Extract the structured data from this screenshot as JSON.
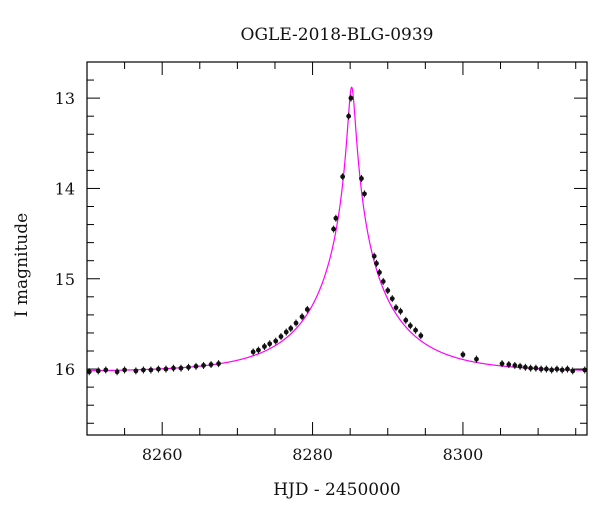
{
  "chart_data": {
    "type": "scatter",
    "title": "OGLE-2018-BLG-0939",
    "xlabel": "HJD - 2450000",
    "ylabel": "I magnitude",
    "xlim": [
      8250,
      8316.5
    ],
    "ylim": [
      16.73,
      12.6
    ],
    "y_inverted": true,
    "x_ticks": [
      8260,
      8280,
      8300
    ],
    "y_ticks": [
      13,
      14,
      15,
      16
    ],
    "grid": false,
    "colors": {
      "points": "#111111",
      "model": "#ff00ff",
      "axes": "#000000"
    },
    "model": {
      "t0": 8285.2,
      "u0": 0.0425,
      "tE": 11.0,
      "baseline_mag": 16.03,
      "peak_mag": 12.88
    },
    "series": [
      {
        "x": [
          8250.3,
          8251.5,
          8252.5,
          8254.0,
          8255.0,
          8256.5,
          8257.5,
          8258.5,
          8259.5,
          8260.5,
          8261.5,
          8262.5,
          8263.5,
          8264.5,
          8265.5,
          8266.5,
          8267.5,
          8272.1,
          8272.8,
          8273.6,
          8274.3,
          8275.1,
          8275.8,
          8276.5,
          8277.1,
          8277.8,
          8278.6,
          8279.3,
          8282.8,
          8283.1,
          8284.0,
          8284.8,
          8285.1,
          8286.5,
          8286.9,
          8288.2,
          8288.5,
          8288.9,
          8289.4,
          8290.0,
          8290.6,
          8291.1,
          8291.7,
          8292.4,
          8293.0,
          8293.7,
          8294.4,
          8300.0,
          8301.8,
          8305.2,
          8306.1,
          8306.9,
          8307.6,
          8308.3,
          8309.0,
          8309.7,
          8310.4,
          8311.1,
          8311.8,
          8312.5,
          8313.2,
          8313.9,
          8314.6,
          8316.2
        ],
        "y": [
          16.03,
          16.02,
          16.01,
          16.03,
          16.01,
          16.02,
          16.01,
          16.01,
          16.0,
          16.0,
          15.99,
          15.99,
          15.98,
          15.97,
          15.96,
          15.95,
          15.94,
          15.81,
          15.79,
          15.75,
          15.72,
          15.69,
          15.64,
          15.59,
          15.55,
          15.49,
          15.42,
          15.34,
          14.45,
          14.33,
          13.87,
          13.2,
          13.0,
          13.89,
          14.06,
          14.75,
          14.83,
          14.93,
          15.03,
          15.13,
          15.22,
          15.32,
          15.36,
          15.46,
          15.52,
          15.57,
          15.63,
          15.84,
          15.89,
          15.94,
          15.95,
          15.96,
          15.97,
          15.98,
          15.99,
          15.99,
          16.0,
          16.0,
          16.01,
          16.0,
          16.01,
          16.0,
          16.02,
          16.01
        ]
      }
    ]
  }
}
